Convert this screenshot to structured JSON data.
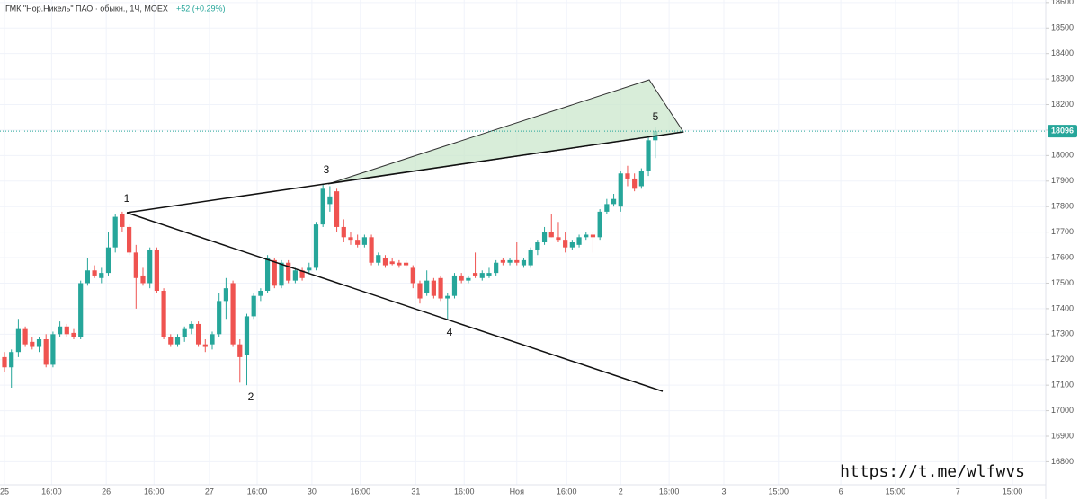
{
  "chart_data": {
    "type": "candlestick",
    "title": "ГМК \"Нор.Никель\" ПАО · обыкн., 1Ч, MOEX",
    "change": "+52 (+0.29%)",
    "watermark": "https://t.me/wlfwvs",
    "wave_labels": [
      "1",
      "2",
      "3",
      "4",
      "5"
    ],
    "up_color": "#26a69a",
    "down_color": "#ef5350",
    "open": [
      17210,
      17170,
      17230,
      17320,
      17270,
      17250,
      17280,
      17180,
      17300,
      17330,
      17305,
      17290,
      17500,
      17550,
      17520,
      17540,
      17640,
      17770,
      17720,
      17620,
      17530,
      17500,
      17630,
      17470,
      17290,
      17260,
      17290,
      17320,
      17340,
      17260,
      17260,
      17300,
      17430,
      17500,
      17260,
      17220,
      17370,
      17450,
      17470,
      17590,
      17490,
      17580,
      17510,
      17550,
      17550,
      17560,
      17730,
      17810,
      17860,
      17720,
      17680,
      17670,
      17650,
      17680,
      17580,
      17600,
      17585,
      17580,
      17580,
      17560,
      17500,
      17460,
      17510,
      17520,
      17440,
      17450,
      17530,
      17510,
      17540,
      17520,
      17530,
      17540,
      17590,
      17580,
      17590,
      17570,
      17570,
      17630,
      17660,
      17700,
      17680,
      17670,
      17640,
      17650,
      17680,
      17690,
      17680,
      17780,
      17810,
      17800,
      17930,
      17910,
      17880,
      17940,
      18060
    ],
    "high": [
      17230,
      17240,
      17360,
      17330,
      17290,
      17290,
      17300,
      17310,
      17350,
      17340,
      17320,
      17510,
      17600,
      17570,
      17560,
      17700,
      17770,
      17780,
      17730,
      17650,
      17560,
      17640,
      17640,
      17480,
      17300,
      17300,
      17330,
      17350,
      17350,
      17280,
      17310,
      17460,
      17520,
      17510,
      17280,
      17380,
      17460,
      17480,
      17610,
      17600,
      17590,
      17590,
      17560,
      17560,
      17580,
      17740,
      17890,
      17880,
      17870,
      17750,
      17700,
      17690,
      17690,
      17690,
      17620,
      17610,
      17600,
      17590,
      17590,
      17570,
      17510,
      17550,
      17520,
      17530,
      17460,
      17540,
      17540,
      17530,
      17620,
      17550,
      17560,
      17590,
      17600,
      17600,
      17660,
      17600,
      17640,
      17670,
      17720,
      17770,
      17740,
      17700,
      17670,
      17690,
      17700,
      17700,
      17790,
      17830,
      17850,
      17940,
      17960,
      17930,
      17950,
      18070,
      18110
    ],
    "low": [
      17150,
      17090,
      17210,
      17250,
      17240,
      17230,
      17170,
      17170,
      17290,
      17290,
      17280,
      17280,
      17490,
      17520,
      17500,
      17530,
      17620,
      17700,
      17610,
      17400,
      17490,
      17480,
      17460,
      17280,
      17250,
      17250,
      17270,
      17300,
      17250,
      17230,
      17240,
      17290,
      17360,
      17250,
      17110,
      17100,
      17360,
      17430,
      17460,
      17480,
      17480,
      17500,
      17500,
      17510,
      17540,
      17550,
      17720,
      17780,
      17700,
      17660,
      17650,
      17640,
      17640,
      17570,
      17570,
      17560,
      17570,
      17560,
      17560,
      17480,
      17420,
      17450,
      17440,
      17430,
      17360,
      17440,
      17500,
      17500,
      17520,
      17510,
      17520,
      17530,
      17570,
      17570,
      17570,
      17560,
      17560,
      17610,
      17650,
      17680,
      17660,
      17620,
      17630,
      17640,
      17670,
      17620,
      17670,
      17770,
      17800,
      17780,
      17880,
      17860,
      17870,
      17920,
      17990
    ],
    "close": [
      17170,
      17230,
      17320,
      17260,
      17250,
      17280,
      17180,
      17300,
      17330,
      17300,
      17290,
      17500,
      17550,
      17530,
      17540,
      17640,
      17760,
      17720,
      17620,
      17520,
      17500,
      17630,
      17470,
      17290,
      17260,
      17290,
      17320,
      17340,
      17260,
      17250,
      17300,
      17430,
      17480,
      17260,
      17210,
      17370,
      17450,
      17470,
      17600,
      17490,
      17580,
      17510,
      17550,
      17520,
      17560,
      17730,
      17870,
      17840,
      17720,
      17680,
      17670,
      17650,
      17680,
      17580,
      17610,
      17570,
      17575,
      17570,
      17570,
      17500,
      17440,
      17510,
      17450,
      17440,
      17450,
      17530,
      17510,
      17520,
      17530,
      17540,
      17540,
      17580,
      17580,
      17590,
      17580,
      17590,
      17630,
      17660,
      17700,
      17680,
      17670,
      17640,
      17660,
      17680,
      17690,
      17680,
      17780,
      17810,
      17830,
      17930,
      17910,
      17870,
      17940,
      18060,
      18096
    ],
    "xlim": [
      -0.65,
      150.4
    ],
    "xticks": [
      {
        "value": 0,
        "label": "25"
      },
      {
        "value": 6.8,
        "label": "16:00"
      },
      {
        "value": 14.7,
        "label": "26"
      },
      {
        "value": 21.6,
        "label": "16:00"
      },
      {
        "value": 29.6,
        "label": "27"
      },
      {
        "value": 36.5,
        "label": "16:00"
      },
      {
        "value": 44.4,
        "label": "30"
      },
      {
        "value": 51.4,
        "label": "16:00"
      },
      {
        "value": 59.4,
        "label": "31"
      },
      {
        "value": 66.4,
        "label": "16:00"
      },
      {
        "value": 74,
        "label": "Ноя"
      },
      {
        "value": 81.2,
        "label": "16:00"
      },
      {
        "value": 89,
        "label": "2"
      },
      {
        "value": 96,
        "label": "16:00"
      },
      {
        "value": 103.9,
        "label": "3"
      },
      {
        "value": 111.8,
        "label": "15:00"
      },
      {
        "value": 120.8,
        "label": "6"
      },
      {
        "value": 128.7,
        "label": "15:00"
      },
      {
        "value": 137.7,
        "label": "7"
      },
      {
        "value": 145.6,
        "label": "15:00"
      }
    ],
    "ylim": [
      16710,
      18610
    ],
    "yticks": [
      16800,
      16900,
      17000,
      17100,
      17200,
      17300,
      17400,
      17500,
      17600,
      17700,
      17800,
      17900,
      18000,
      18100,
      18200,
      18300,
      18400,
      18500,
      18600
    ],
    "grid": true
  }
}
